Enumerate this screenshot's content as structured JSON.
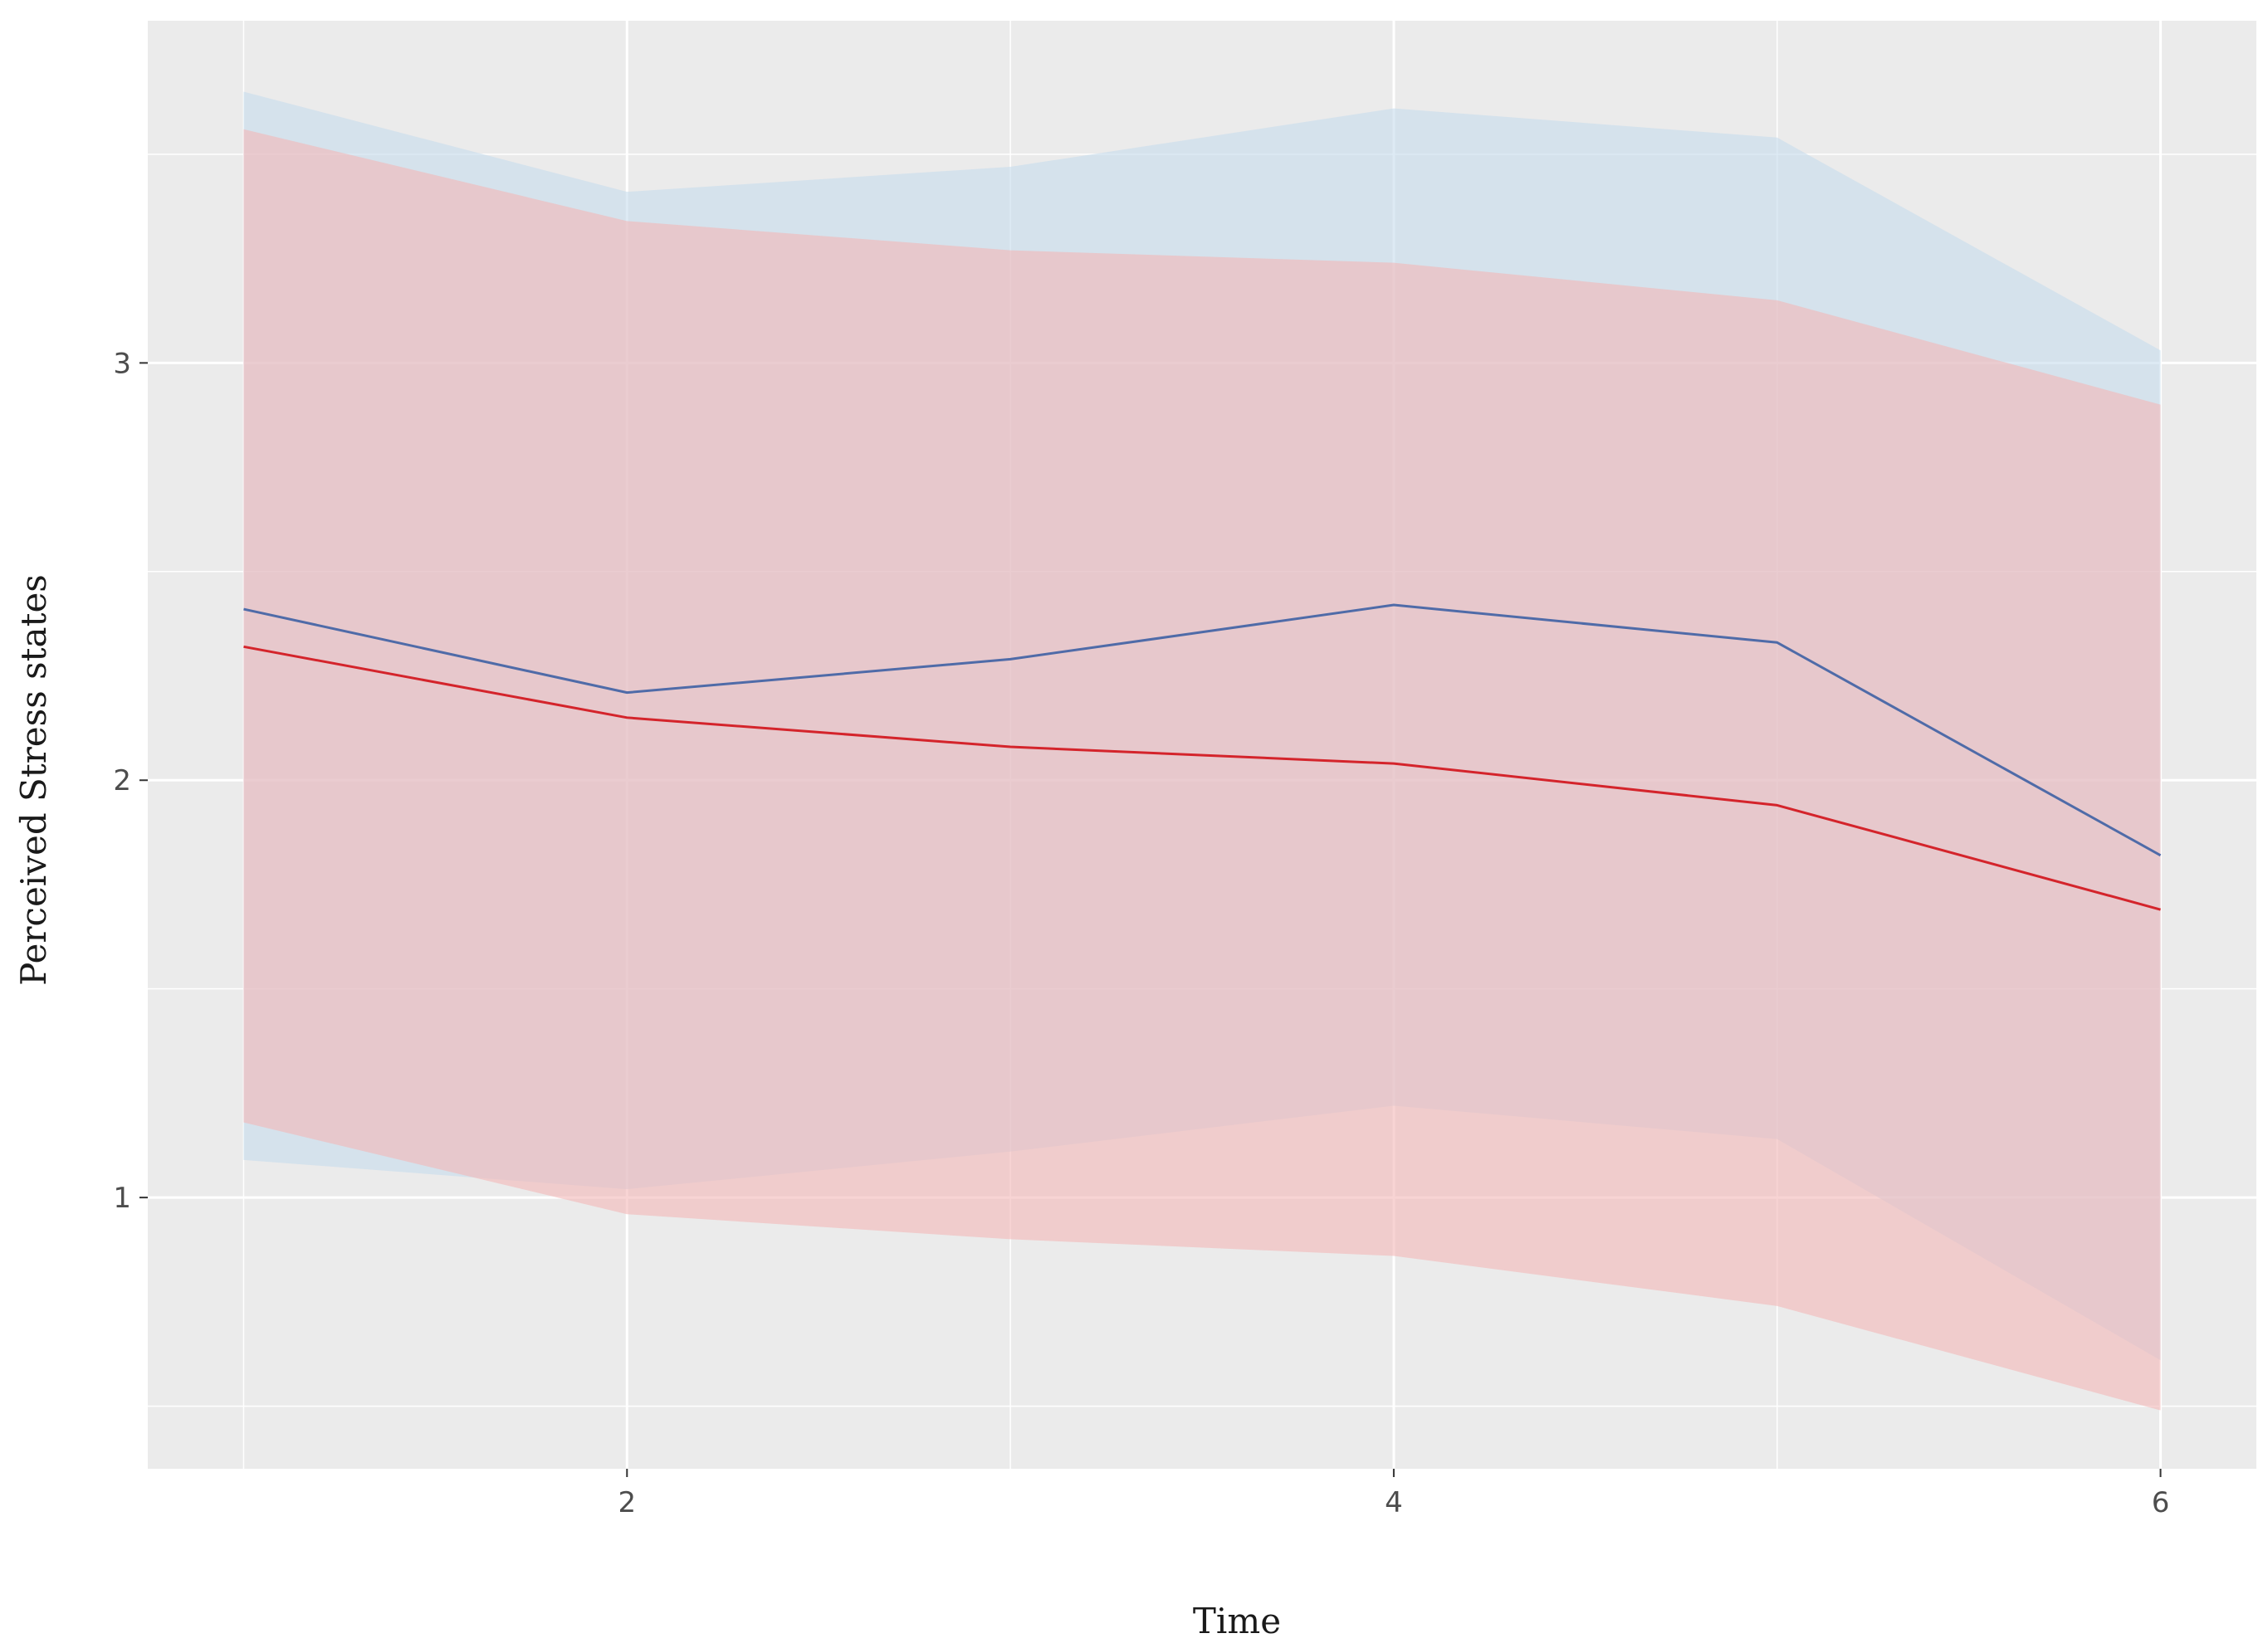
{
  "chart_data": {
    "type": "line",
    "xlabel": "Time",
    "ylabel": "Perceived Stress states",
    "x": [
      1,
      2,
      3,
      4,
      5,
      6
    ],
    "xlim": [
      0.75,
      6.25
    ],
    "ylim": [
      0.35,
      3.82
    ],
    "xticks": [
      2,
      4,
      6
    ],
    "yticks": [
      1,
      2,
      3
    ],
    "xtick_labels": [
      "2",
      "4",
      "6"
    ],
    "ytick_labels": [
      "1",
      "2",
      "3"
    ],
    "x_minor_gridlines": [
      1,
      3,
      5
    ],
    "y_minor_gridlines": [
      0.5,
      1.5,
      2.5,
      3.5
    ],
    "grid": true,
    "background": "#ebebeb",
    "gridline_color": "#ffffff",
    "series": [
      {
        "color": "#4f6ba8",
        "ribbon_color": "#c6dcec",
        "values": [
          2.41,
          2.21,
          2.29,
          2.42,
          2.33,
          1.82
        ],
        "lower": [
          1.09,
          1.02,
          1.11,
          1.22,
          1.14,
          0.61
        ],
        "upper": [
          3.65,
          3.41,
          3.47,
          3.61,
          3.54,
          3.03
        ]
      },
      {
        "color": "#d4242b",
        "ribbon_color": "#f4b8b8",
        "values": [
          2.32,
          2.15,
          2.08,
          2.04,
          1.94,
          1.69
        ],
        "lower": [
          1.18,
          0.96,
          0.9,
          0.86,
          0.74,
          0.49
        ],
        "upper": [
          3.56,
          3.34,
          3.27,
          3.24,
          3.15,
          2.9
        ]
      }
    ]
  }
}
